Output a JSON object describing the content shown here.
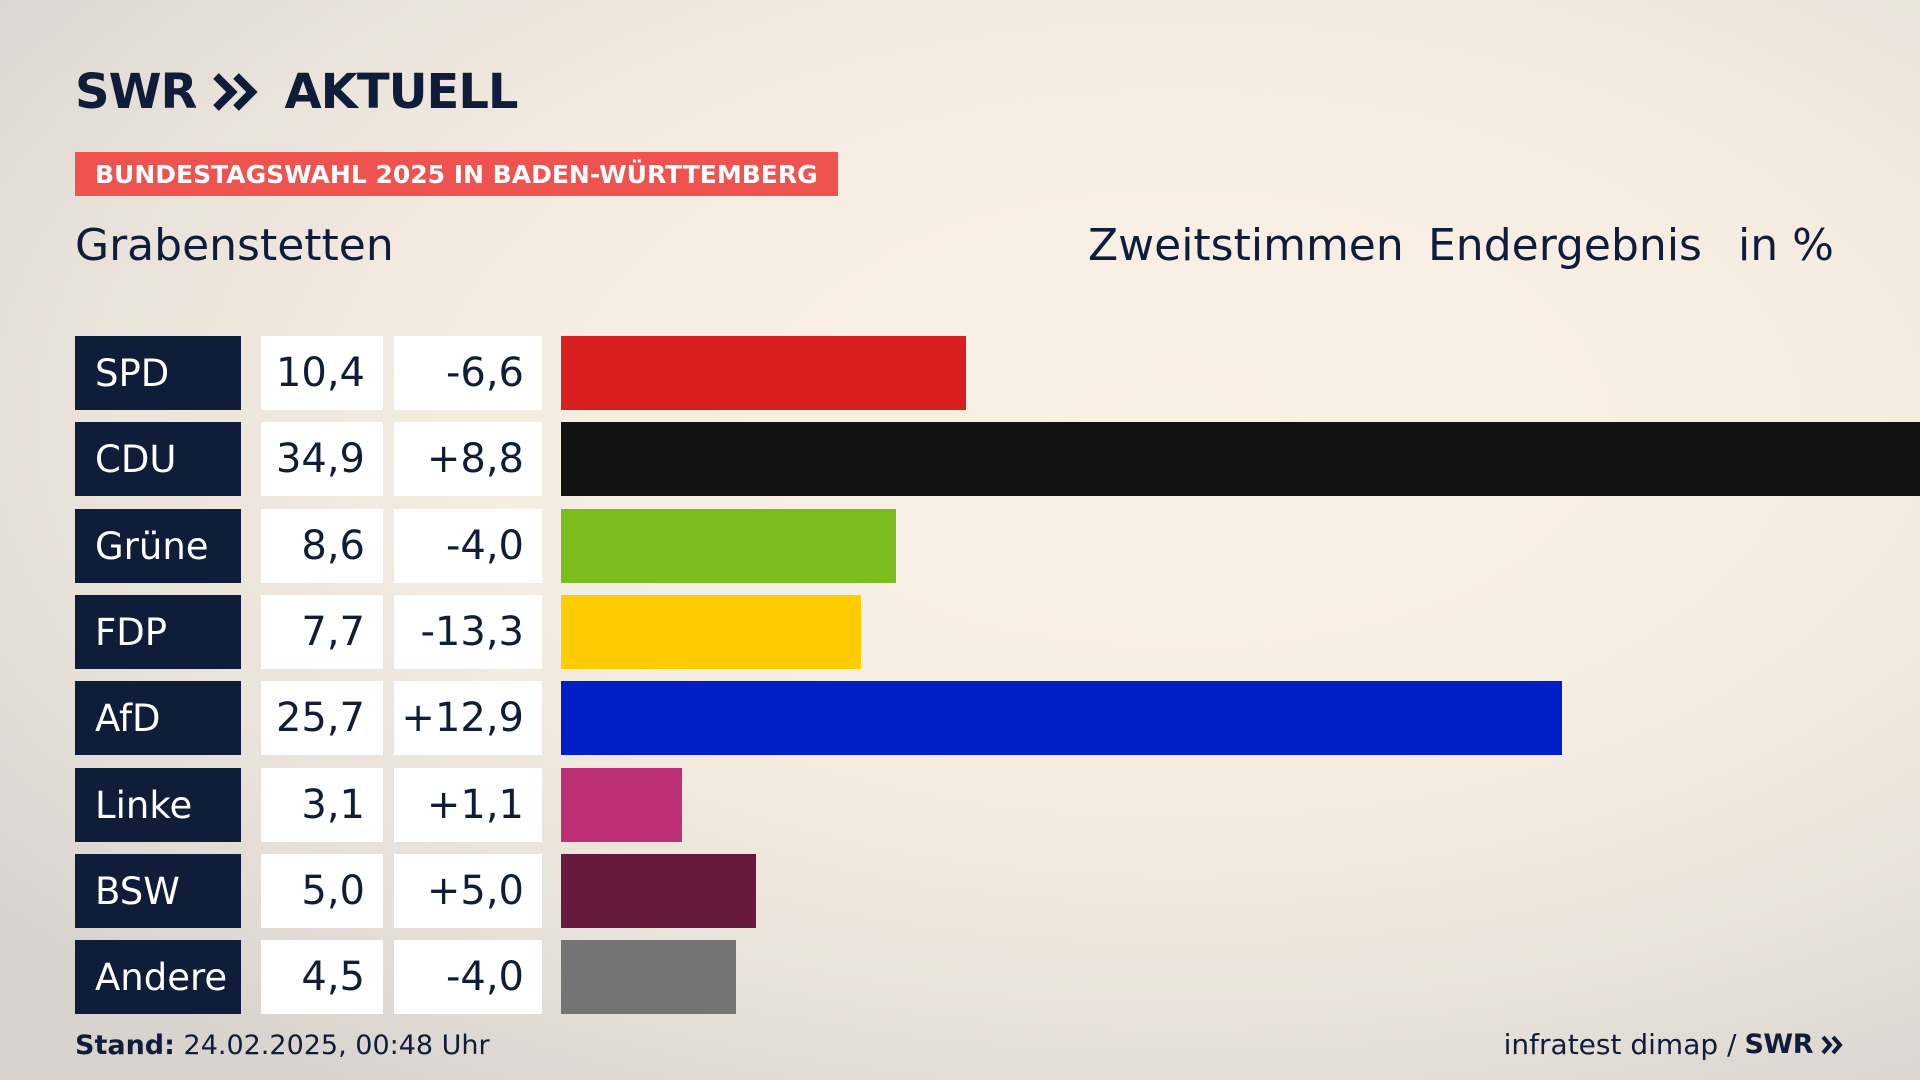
{
  "header": {
    "logo_left": "SWR",
    "logo_right": "AKTUELL",
    "badge": "BUNDESTAGSWAHL 2025 IN BADEN-WÜRTTEMBERG",
    "place": "Grabenstetten",
    "col_zweit": "Zweitstimmen",
    "col_end": "Endergebnis",
    "col_unit": "in %"
  },
  "footer": {
    "stand_label": "Stand:",
    "stand_value": "24.02.2025, 00:48 Uhr",
    "source": "infratest dimap /",
    "source_logo": "SWR"
  },
  "colors": {
    "navy": "#0f1d3b",
    "badge": "#ef5350"
  },
  "chart_data": {
    "type": "bar",
    "categories": [
      "SPD",
      "CDU",
      "Grüne",
      "FDP",
      "AfD",
      "Linke",
      "BSW",
      "Andere"
    ],
    "values": [
      10.4,
      34.9,
      8.6,
      7.7,
      25.7,
      3.1,
      5.0,
      4.5
    ],
    "value_labels": [
      "10,4",
      "34,9",
      "8,6",
      "7,7",
      "25,7",
      "3,1",
      "5,0",
      "4,5"
    ],
    "diff_values": [
      -6.6,
      8.8,
      -4.0,
      -13.3,
      12.9,
      1.1,
      5.0,
      -4.0
    ],
    "diff_labels": [
      "-6,6",
      "+8,8",
      "-4,0",
      "-13,3",
      "+12,9",
      "+1,1",
      "+5,0",
      "-4,0"
    ],
    "colors": [
      "#d71f20",
      "#121212",
      "#7cbd1e",
      "#ffcc00",
      "#001fc9",
      "#bd3075",
      "#681a3e",
      "#747474"
    ],
    "title": "Zweitstimmen Endergebnis",
    "ylabel": "in %",
    "xlim": [
      0,
      34.9
    ]
  }
}
